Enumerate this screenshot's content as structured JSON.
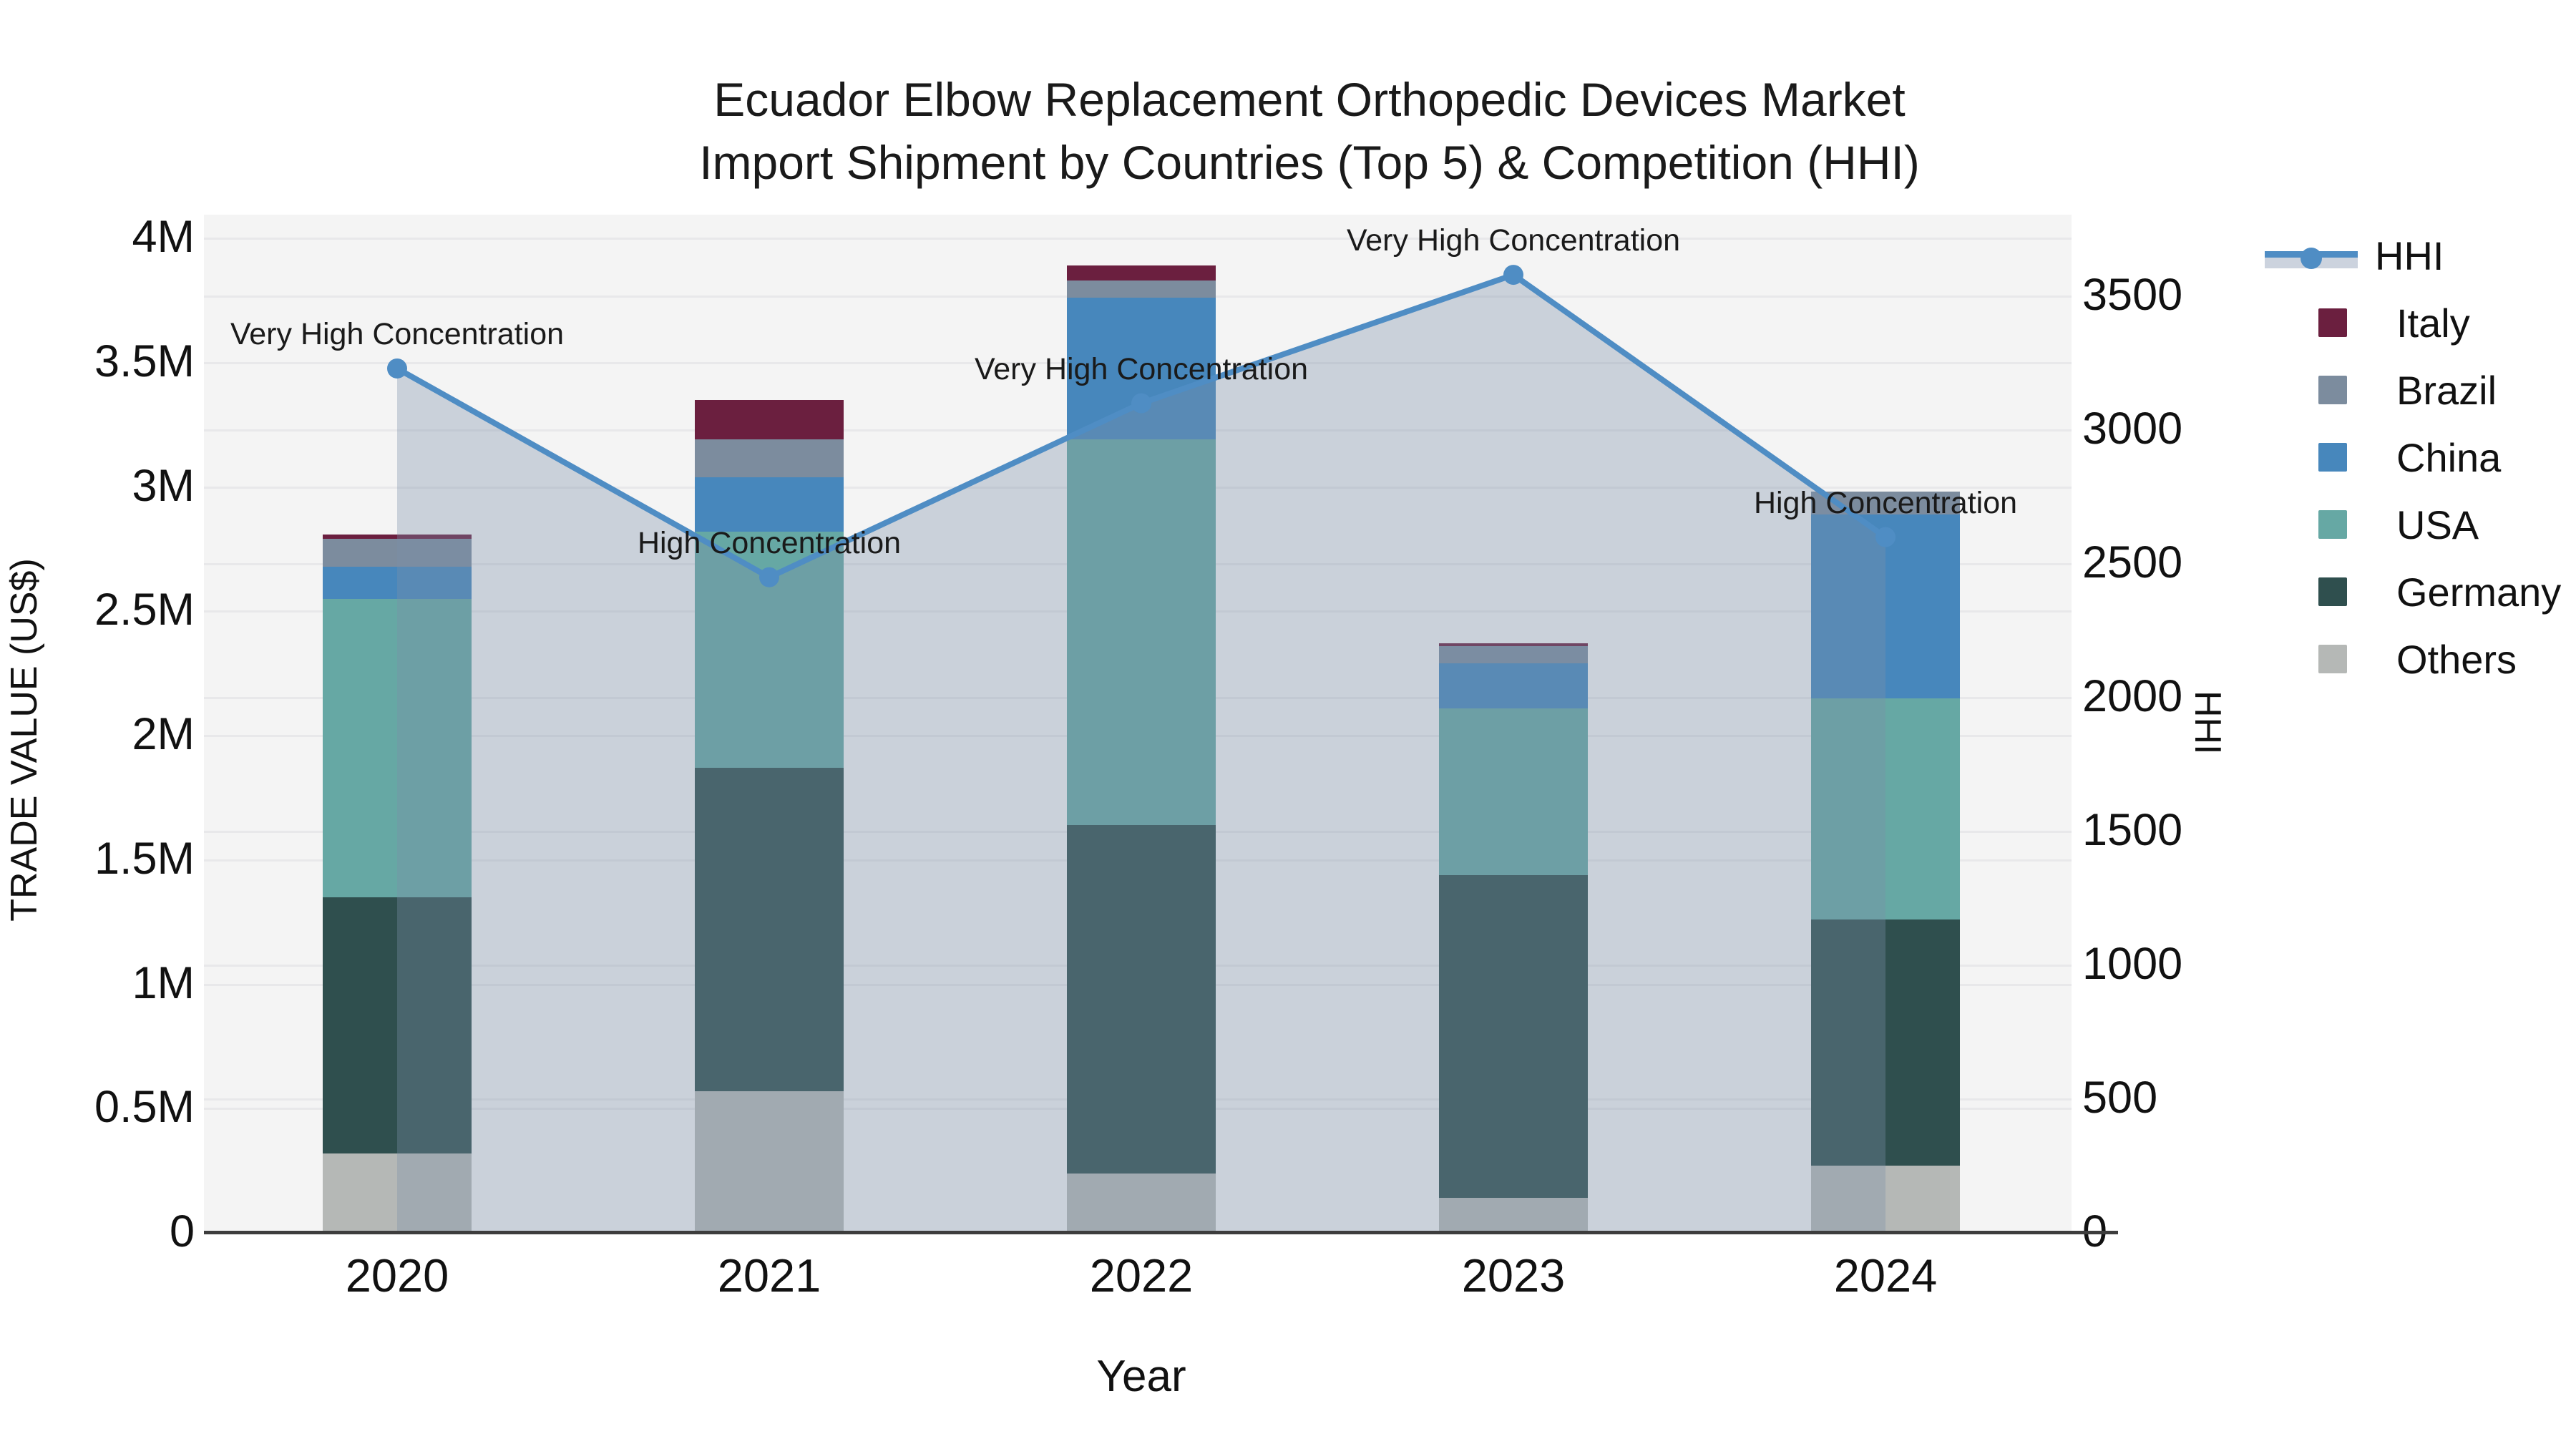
{
  "title": {
    "line1": "Ecuador Elbow Replacement Orthopedic Devices Market",
    "line2": "Import Shipment by Countries (Top 5) & Competition (HHI)"
  },
  "axes": {
    "x": {
      "label": "Year",
      "ticks": [
        "2020",
        "2021",
        "2022",
        "2023",
        "2024"
      ]
    },
    "left": {
      "label": "TRADE VALUE (US$)",
      "ticks": [
        "0",
        "0.5M",
        "1M",
        "1.5M",
        "2M",
        "2.5M",
        "3M",
        "3.5M",
        "4M"
      ]
    },
    "right": {
      "label": "HHI",
      "ticks": [
        "0",
        "500",
        "1000",
        "1500",
        "2000",
        "2500",
        "3000",
        "3500"
      ]
    }
  },
  "legend": {
    "items": [
      {
        "label": "HHI",
        "type": "line",
        "color": "#4f8dc4"
      },
      {
        "label": "Italy",
        "type": "square",
        "color": "#6b1f3f"
      },
      {
        "label": "Brazil",
        "type": "square",
        "color": "#7c8c9e"
      },
      {
        "label": "China",
        "type": "square",
        "color": "#4787bc"
      },
      {
        "label": "USA",
        "type": "square",
        "color": "#66a8a4"
      },
      {
        "label": "Germany",
        "type": "square",
        "color": "#2f4f4e"
      },
      {
        "label": "Others",
        "type": "square",
        "color": "#b5b8b6"
      }
    ]
  },
  "colors": {
    "plot_background": "#f4f4f4",
    "gridline": "#e8e8ea",
    "axis_line": "#3d3d3d",
    "hhi_line": "#4f8dc4",
    "hhi_fill": "rgba(123,143,168,0.35)",
    "text": "#111111"
  },
  "chart_data": {
    "type": "bar+line",
    "title": "Ecuador Elbow Replacement Orthopedic Devices Market — Import Shipment by Countries (Top 5) & Competition (HHI)",
    "categories": [
      "2020",
      "2021",
      "2022",
      "2023",
      "2024"
    ],
    "bar_unit": "US$ millions (left axis, TRADE VALUE (US$))",
    "stack_order_bottom_to_top": [
      "Others",
      "Germany",
      "USA",
      "China",
      "Brazil",
      "Italy"
    ],
    "series": [
      {
        "name": "Others",
        "color": "#b5b8b6",
        "values": [
          0.32,
          0.57,
          0.24,
          0.14,
          0.27
        ]
      },
      {
        "name": "Germany",
        "color": "#2f4f4e",
        "values": [
          1.03,
          1.3,
          1.4,
          1.3,
          0.99
        ]
      },
      {
        "name": "USA",
        "color": "#66a8a4",
        "values": [
          1.2,
          0.95,
          1.55,
          0.67,
          0.89
        ]
      },
      {
        "name": "China",
        "color": "#4787bc",
        "values": [
          0.13,
          0.22,
          0.57,
          0.18,
          0.74
        ]
      },
      {
        "name": "Brazil",
        "color": "#7c8c9e",
        "values": [
          0.11,
          0.15,
          0.07,
          0.07,
          0.09
        ]
      },
      {
        "name": "Italy",
        "color": "#6b1f3f",
        "values": [
          0.02,
          0.16,
          0.06,
          0.01,
          0.0
        ]
      }
    ],
    "bar_totals": [
      2.81,
      3.35,
      3.89,
      2.37,
      2.98
    ],
    "line_series": {
      "name": "HHI",
      "color": "#4f8dc4",
      "values": [
        3230,
        2450,
        3100,
        3580,
        2600
      ],
      "area_fill": "rgba(123,143,168,0.35)",
      "point_annotations": [
        "Very High Concentration",
        "High Concentration",
        "Very High Concentration",
        "Very High Concentration",
        "High Concentration"
      ]
    },
    "xlabel": "Year",
    "ylabel_left": "TRADE VALUE (US$)",
    "ylabel_right": "HHI",
    "ylim_left": [
      0,
      4.09
    ],
    "ylim_right": [
      0,
      3800
    ],
    "grid": "horizontal gridlines: left axis every 0.5M, right axis every 500",
    "legend_position": "right"
  }
}
